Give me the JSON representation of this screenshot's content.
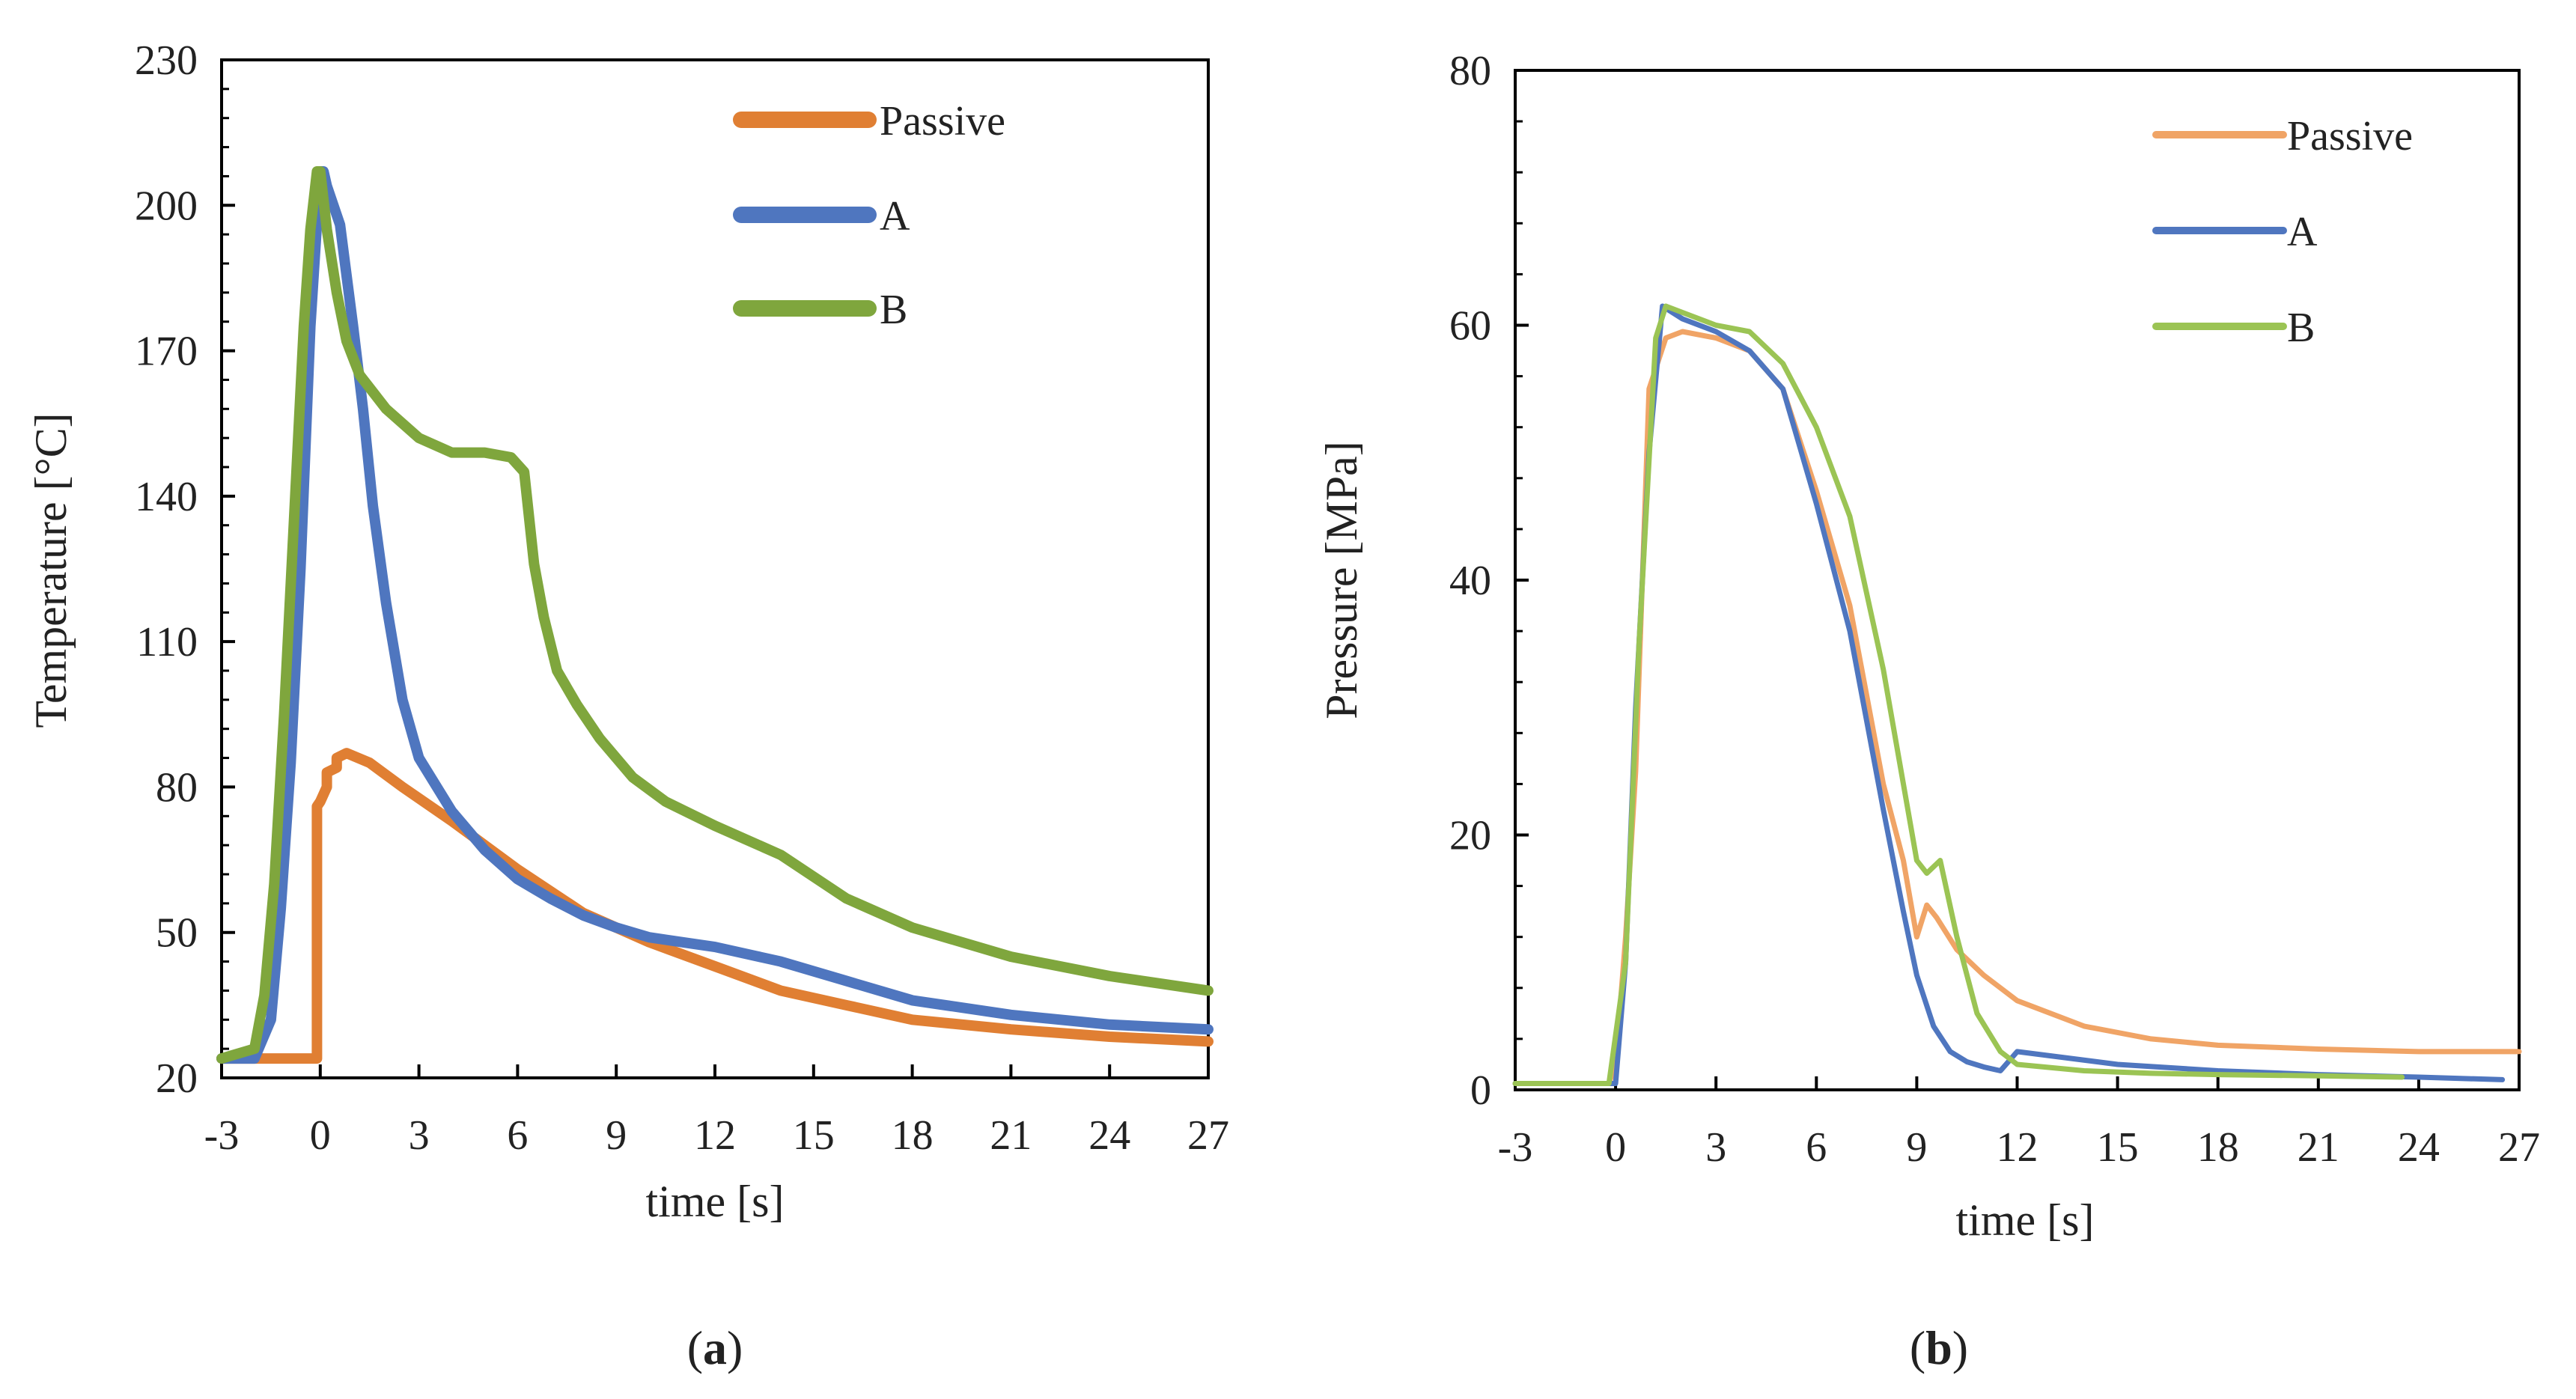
{
  "chart_data": [
    {
      "type": "line",
      "panel": "a",
      "caption_letter": "a",
      "title": "",
      "xlabel": "time [s]",
      "ylabel": "Temperature [°C]",
      "xlim": [
        -3,
        27
      ],
      "ylim": [
        20,
        230
      ],
      "xticks": [
        -3,
        0,
        3,
        6,
        9,
        12,
        15,
        18,
        21,
        24,
        27
      ],
      "yticks": [
        20,
        50,
        80,
        110,
        140,
        170,
        200,
        230
      ],
      "grid": false,
      "legend_position": "top-right",
      "series": [
        {
          "name": "Passive",
          "color": "#E07F33",
          "x": [
            -3,
            -0.1,
            -0.1,
            0,
            0.2,
            0.2,
            0.5,
            0.5,
            0.8,
            1.5,
            2.5,
            4,
            6,
            8,
            10,
            12,
            14,
            16,
            18,
            21,
            24,
            27
          ],
          "y": [
            24,
            24,
            76,
            77,
            80,
            83,
            84,
            86,
            87,
            85,
            80,
            73,
            63,
            54,
            48,
            43,
            38,
            35,
            32,
            30,
            28.5,
            27.5
          ]
        },
        {
          "name": "A",
          "color": "#4F76BF",
          "x": [
            -3,
            -2,
            -1.5,
            -1.2,
            -0.9,
            -0.6,
            -0.3,
            0,
            0.1,
            0.2,
            0.6,
            1,
            1.3,
            1.6,
            2,
            2.5,
            3,
            4,
            5,
            6,
            7,
            8,
            9,
            10,
            11,
            12,
            14,
            16,
            18,
            21,
            24,
            27
          ],
          "y": [
            24,
            24,
            32,
            55,
            85,
            125,
            175,
            207,
            207,
            204,
            196,
            175,
            158,
            138,
            118,
            98,
            86,
            75,
            67,
            61,
            57,
            53.5,
            51,
            49,
            48,
            47,
            44,
            40,
            36,
            33,
            31,
            30
          ]
        },
        {
          "name": "B",
          "color": "#7FA63D",
          "x": [
            -3,
            -2,
            -1.7,
            -1.4,
            -1.1,
            -0.8,
            -0.5,
            -0.3,
            -0.1,
            0,
            0.2,
            0.5,
            0.8,
            1.2,
            2,
            3,
            4,
            5,
            5.8,
            6.2,
            6.5,
            6.8,
            7.2,
            7.8,
            8.5,
            9.5,
            10.5,
            12,
            14,
            16,
            18,
            21,
            24,
            27
          ],
          "y": [
            24,
            26,
            37,
            60,
            95,
            135,
            175,
            195,
            207,
            207,
            195,
            182,
            172,
            165,
            158,
            152,
            149,
            149,
            148,
            145,
            126,
            115,
            104,
            97,
            90,
            82,
            77,
            72,
            66,
            57,
            51,
            45,
            41,
            38
          ]
        }
      ]
    },
    {
      "type": "line",
      "panel": "b",
      "caption_letter": "b",
      "title": "",
      "xlabel": "time [s]",
      "ylabel": "Pressure [MPa]",
      "xlim": [
        -3,
        27
      ],
      "ylim": [
        0,
        80
      ],
      "xticks": [
        -3,
        0,
        3,
        6,
        9,
        12,
        15,
        18,
        21,
        24,
        27
      ],
      "yticks": [
        0,
        20,
        40,
        60,
        80
      ],
      "grid": false,
      "legend_position": "top-right",
      "series": [
        {
          "name": "Passive",
          "color": "#F0A466",
          "x": [
            -3,
            -0.2,
            0,
            0.3,
            0.6,
            1,
            1.5,
            2,
            3,
            4,
            5,
            6,
            7,
            8,
            8.6,
            9,
            9.3,
            9.6,
            10.2,
            11,
            12,
            14,
            16,
            18,
            21,
            24,
            27
          ],
          "y": [
            0.5,
            0.5,
            2,
            12,
            25,
            55,
            59,
            59.5,
            59,
            58,
            55,
            47,
            38,
            24,
            18,
            12,
            14.5,
            13.5,
            11,
            9,
            7,
            5,
            4,
            3.5,
            3.2,
            3,
            3
          ]
        },
        {
          "name": "A",
          "color": "#4F76BF",
          "x": [
            -3,
            0,
            0.3,
            0.6,
            1,
            1.4,
            2,
            3,
            4,
            5,
            6,
            7,
            8,
            8.6,
            9,
            9.5,
            10,
            10.5,
            11,
            11.5,
            12,
            15,
            18,
            21,
            24,
            26.5
          ],
          "y": [
            0.5,
            0.5,
            10,
            30,
            50,
            61.5,
            60.5,
            59.5,
            58,
            55,
            46,
            36,
            22,
            14,
            9,
            5,
            3,
            2.2,
            1.8,
            1.5,
            3,
            2,
            1.5,
            1.2,
            1,
            0.8
          ]
        },
        {
          "name": "B",
          "color": "#9BC454",
          "x": [
            -3,
            -0.2,
            0.3,
            0.7,
            1.2,
            1.5,
            2,
            3,
            4,
            5,
            6,
            7,
            8,
            9,
            9.3,
            9.7,
            10.2,
            10.8,
            11.5,
            12,
            14,
            16,
            18,
            21,
            23.5
          ],
          "y": [
            0.5,
            0.5,
            10,
            35,
            59,
            61.5,
            61,
            60,
            59.5,
            57,
            52,
            45,
            33,
            18,
            17,
            18,
            12,
            6,
            3,
            2,
            1.5,
            1.3,
            1.2,
            1.1,
            1
          ]
        }
      ]
    }
  ]
}
